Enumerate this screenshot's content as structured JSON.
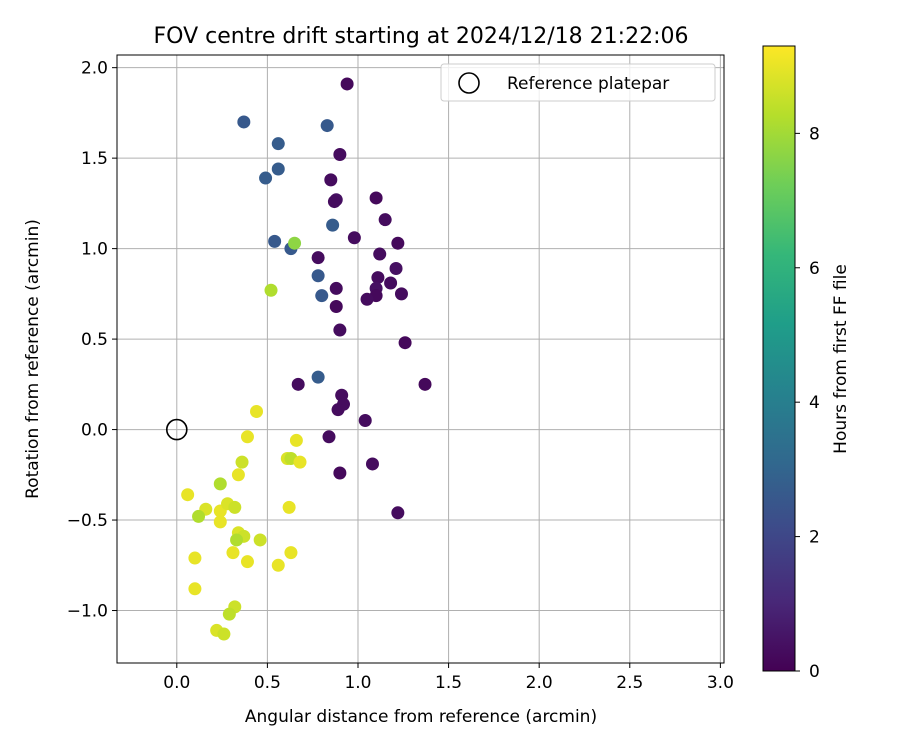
{
  "chart_data": {
    "type": "scatter",
    "title": "FOV centre drift starting at 2024/12/18 21:22:06",
    "xlabel": "Angular distance from reference (arcmin)",
    "ylabel": "Rotation from reference (arcmin)",
    "xlim": [
      -0.33,
      3.02
    ],
    "ylim": [
      -1.29,
      2.07
    ],
    "xticks": [
      0.0,
      0.5,
      1.0,
      1.5,
      2.0,
      2.5,
      3.0
    ],
    "xtick_labels": [
      "0.0",
      "0.5",
      "1.0",
      "1.5",
      "2.0",
      "2.5",
      "3.0"
    ],
    "yticks": [
      -1.0,
      -0.5,
      0.0,
      0.5,
      1.0,
      1.5,
      2.0
    ],
    "ytick_labels": [
      "−1.0",
      "−0.5",
      "0.0",
      "0.5",
      "1.0",
      "1.5",
      "2.0"
    ],
    "grid": true,
    "legend": {
      "placement": "top-right",
      "entries": [
        {
          "label": "Reference platepar",
          "marker": "open-circle"
        }
      ]
    },
    "reference_point": {
      "x": 0.0,
      "y": 0.0,
      "label": "Reference platepar"
    },
    "colorbar": {
      "label": "Hours from first FF file",
      "colormap": "viridis",
      "range": [
        0,
        9.3
      ],
      "ticks": [
        0,
        2,
        4,
        6,
        8
      ],
      "tick_labels": [
        "0",
        "2",
        "4",
        "6",
        "8"
      ]
    },
    "colormap_stops": [
      "#440154",
      "#482878",
      "#3e4989",
      "#31688e",
      "#26828e",
      "#1f9e89",
      "#35b779",
      "#6ece58",
      "#b5de2b",
      "#fde725"
    ],
    "series": [
      {
        "points": [
          {
            "x": 0.94,
            "y": 1.91,
            "c": 0.2
          },
          {
            "x": 0.9,
            "y": 1.52,
            "c": 0.3
          },
          {
            "x": 0.85,
            "y": 1.38,
            "c": 0.3
          },
          {
            "x": 0.88,
            "y": 1.27,
            "c": 0.4
          },
          {
            "x": 0.87,
            "y": 1.26,
            "c": 0.3
          },
          {
            "x": 1.1,
            "y": 1.28,
            "c": 0.2
          },
          {
            "x": 1.15,
            "y": 1.16,
            "c": 0.3
          },
          {
            "x": 0.98,
            "y": 1.06,
            "c": 0.3
          },
          {
            "x": 1.22,
            "y": 1.03,
            "c": 0.2
          },
          {
            "x": 1.12,
            "y": 0.97,
            "c": 0.3
          },
          {
            "x": 0.78,
            "y": 0.95,
            "c": 0.3
          },
          {
            "x": 1.21,
            "y": 0.89,
            "c": 0.4
          },
          {
            "x": 1.11,
            "y": 0.84,
            "c": 0.3
          },
          {
            "x": 1.18,
            "y": 0.81,
            "c": 0.3
          },
          {
            "x": 0.88,
            "y": 0.78,
            "c": 0.3
          },
          {
            "x": 1.1,
            "y": 0.78,
            "c": 0.4
          },
          {
            "x": 1.24,
            "y": 0.75,
            "c": 0.3
          },
          {
            "x": 1.1,
            "y": 0.74,
            "c": 0.2
          },
          {
            "x": 1.05,
            "y": 0.72,
            "c": 0.3
          },
          {
            "x": 0.88,
            "y": 0.68,
            "c": 0.2
          },
          {
            "x": 0.9,
            "y": 0.55,
            "c": 0.3
          },
          {
            "x": 1.26,
            "y": 0.48,
            "c": 0.2
          },
          {
            "x": 0.67,
            "y": 0.25,
            "c": 0.3
          },
          {
            "x": 1.37,
            "y": 0.25,
            "c": 0.2
          },
          {
            "x": 0.91,
            "y": 0.19,
            "c": 0.3
          },
          {
            "x": 0.92,
            "y": 0.14,
            "c": 0.3
          },
          {
            "x": 0.89,
            "y": 0.11,
            "c": 0.3
          },
          {
            "x": 1.04,
            "y": 0.05,
            "c": 0.3
          },
          {
            "x": 0.84,
            "y": -0.04,
            "c": 0.3
          },
          {
            "x": 1.08,
            "y": -0.19,
            "c": 0.3
          },
          {
            "x": 0.9,
            "y": -0.24,
            "c": 0.2
          },
          {
            "x": 1.22,
            "y": -0.46,
            "c": 0.3
          },
          {
            "x": 0.37,
            "y": 1.7,
            "c": 2.6
          },
          {
            "x": 0.56,
            "y": 1.58,
            "c": 2.7
          },
          {
            "x": 0.83,
            "y": 1.68,
            "c": 2.6
          },
          {
            "x": 0.56,
            "y": 1.44,
            "c": 2.7
          },
          {
            "x": 0.49,
            "y": 1.39,
            "c": 2.7
          },
          {
            "x": 0.86,
            "y": 1.13,
            "c": 2.7
          },
          {
            "x": 0.54,
            "y": 1.04,
            "c": 2.6
          },
          {
            "x": 0.63,
            "y": 1.0,
            "c": 2.6
          },
          {
            "x": 0.78,
            "y": 0.85,
            "c": 2.6
          },
          {
            "x": 0.8,
            "y": 0.74,
            "c": 2.6
          },
          {
            "x": 0.78,
            "y": 0.29,
            "c": 2.7
          },
          {
            "x": 0.65,
            "y": 1.03,
            "c": 7.7
          },
          {
            "x": 0.52,
            "y": 0.77,
            "c": 8.2
          },
          {
            "x": 0.44,
            "y": 0.1,
            "c": 9.0
          },
          {
            "x": 0.39,
            "y": -0.04,
            "c": 9.0
          },
          {
            "x": 0.36,
            "y": -0.18,
            "c": 8.6
          },
          {
            "x": 0.34,
            "y": -0.25,
            "c": 9.0
          },
          {
            "x": 0.61,
            "y": -0.16,
            "c": 8.8
          },
          {
            "x": 0.63,
            "y": -0.16,
            "c": 8.4
          },
          {
            "x": 0.66,
            "y": -0.06,
            "c": 9.0
          },
          {
            "x": 0.68,
            "y": -0.18,
            "c": 9.0
          },
          {
            "x": 0.06,
            "y": -0.36,
            "c": 9.0
          },
          {
            "x": 0.16,
            "y": -0.44,
            "c": 8.8
          },
          {
            "x": 0.12,
            "y": -0.48,
            "c": 8.2
          },
          {
            "x": 0.24,
            "y": -0.3,
            "c": 8.2
          },
          {
            "x": 0.24,
            "y": -0.45,
            "c": 9.0
          },
          {
            "x": 0.24,
            "y": -0.51,
            "c": 9.0
          },
          {
            "x": 0.28,
            "y": -0.41,
            "c": 8.8
          },
          {
            "x": 0.32,
            "y": -0.43,
            "c": 8.6
          },
          {
            "x": 0.34,
            "y": -0.57,
            "c": 8.8
          },
          {
            "x": 0.37,
            "y": -0.59,
            "c": 8.6
          },
          {
            "x": 0.33,
            "y": -0.61,
            "c": 8.2
          },
          {
            "x": 0.46,
            "y": -0.61,
            "c": 8.6
          },
          {
            "x": 0.31,
            "y": -0.68,
            "c": 9.0
          },
          {
            "x": 0.39,
            "y": -0.73,
            "c": 9.0
          },
          {
            "x": 0.62,
            "y": -0.43,
            "c": 9.0
          },
          {
            "x": 0.63,
            "y": -0.68,
            "c": 9.0
          },
          {
            "x": 0.56,
            "y": -0.75,
            "c": 9.0
          },
          {
            "x": 0.1,
            "y": -0.71,
            "c": 9.0
          },
          {
            "x": 0.1,
            "y": -0.88,
            "c": 9.0
          },
          {
            "x": 0.32,
            "y": -0.98,
            "c": 8.6
          },
          {
            "x": 0.29,
            "y": -1.02,
            "c": 8.4
          },
          {
            "x": 0.22,
            "y": -1.11,
            "c": 8.8
          },
          {
            "x": 0.26,
            "y": -1.13,
            "c": 8.6
          }
        ]
      }
    ]
  }
}
